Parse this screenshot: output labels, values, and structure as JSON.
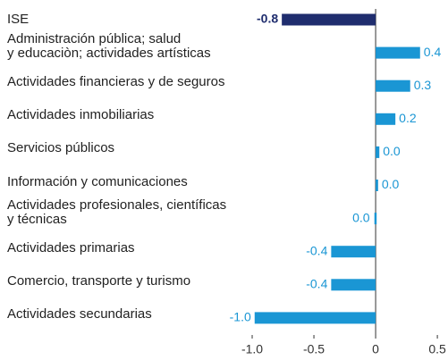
{
  "chart_data": {
    "type": "bar",
    "orientation": "horizontal",
    "categories": [
      "ISE",
      "Administración pública; salud\ny educaciòn; actividades artísticas",
      "Actividades financieras y de seguros",
      "Actividades inmobiliarias",
      "Servicios públicos",
      "Información y comunicaciones",
      "Actividades profesionales, científicas\ny técnicas",
      "Actividades primarias",
      "Comercio, transporte y turismo",
      "Actividades secundarias"
    ],
    "values": [
      -0.76,
      0.36,
      0.28,
      0.16,
      0.03,
      0.02,
      -0.01,
      -0.36,
      -0.36,
      -0.98
    ],
    "value_labels": [
      "-0.8",
      "0.4",
      "0.3",
      "0.2",
      "0.0",
      "0.0",
      "0.0",
      "-0.4",
      "-0.4",
      "-1.0"
    ],
    "colors": [
      "#1f2d6e",
      "#1a96d4",
      "#1a96d4",
      "#1a96d4",
      "#1a96d4",
      "#1a96d4",
      "#1a96d4",
      "#1a96d4",
      "#1a96d4",
      "#1a96d4"
    ],
    "xlim": [
      -1.25,
      0.55
    ],
    "xticks": [
      {
        "value": -1,
        "label": "-1.0"
      },
      {
        "value": -0.5,
        "label": "-0.5"
      },
      0,
      0.5
    ]
  }
}
